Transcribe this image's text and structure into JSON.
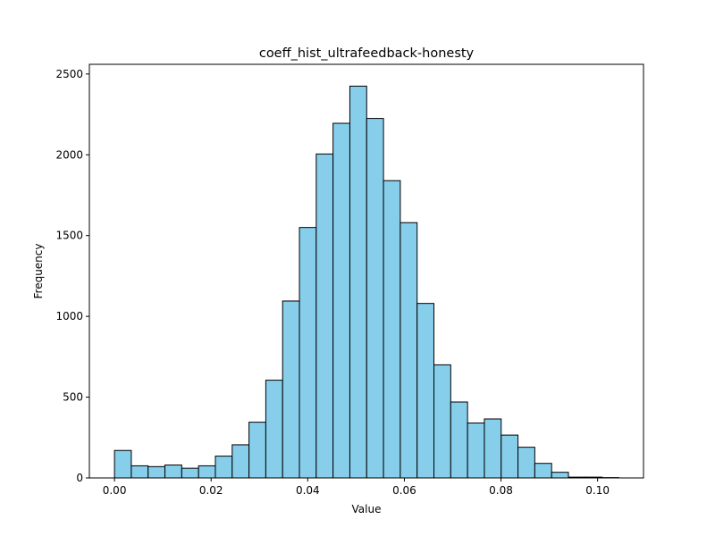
{
  "chart_data": {
    "type": "bar",
    "title": "coeff_hist_ultrafeedback-honesty",
    "xlabel": "Value",
    "ylabel": "Frequency",
    "bin_start": 0.0,
    "bin_width": 0.00348,
    "values": [
      170,
      75,
      70,
      80,
      60,
      75,
      135,
      205,
      345,
      605,
      1095,
      1550,
      2005,
      2195,
      2425,
      2225,
      1840,
      1580,
      1080,
      700,
      470,
      340,
      365,
      265,
      190,
      90,
      35,
      5,
      5,
      2
    ],
    "xlim": [
      -0.0052,
      0.1095
    ],
    "ylim": [
      0,
      2560
    ],
    "xticks": [
      0.0,
      0.02,
      0.04,
      0.06,
      0.08,
      0.1
    ],
    "xtick_labels": [
      "0.00",
      "0.02",
      "0.04",
      "0.06",
      "0.08",
      "0.10"
    ],
    "yticks": [
      0,
      500,
      1000,
      1500,
      2000,
      2500
    ],
    "ytick_labels": [
      "0",
      "500",
      "1000",
      "1500",
      "2000",
      "2500"
    ],
    "grid": false,
    "bar_color": "#87ceeb",
    "edge_color": "#000000"
  }
}
